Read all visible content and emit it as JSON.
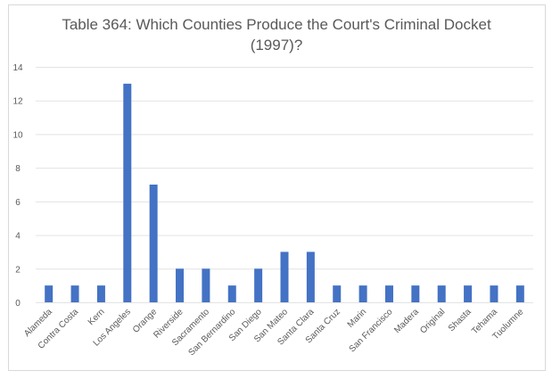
{
  "chart_data": {
    "type": "bar",
    "title": "Table 364: Which Counties Produce the Court's Criminal Docket (1997)?",
    "title_lines": [
      "Table 364: Which Counties Produce the Court's Criminal Docket",
      "(1997)?"
    ],
    "xlabel": "",
    "ylabel": "",
    "ylim": [
      0,
      14
    ],
    "yticks": [
      0,
      2,
      4,
      6,
      8,
      10,
      12,
      14
    ],
    "grid": true,
    "legend": "none",
    "bar_color": "#4472c4",
    "categories": [
      "Alameda",
      "Contra Costa",
      "Kern",
      "Los Angeles",
      "Orange",
      "Riverside",
      "Sacramento",
      "San Bernardino",
      "San Diego",
      "San Mateo",
      "Santa Clara",
      "Santa Cruz",
      "Marin",
      "San Francisco",
      "Madera",
      "Original",
      "Shasta",
      "Tehama",
      "Tuolumne"
    ],
    "values": [
      1,
      1,
      1,
      13,
      7,
      2,
      2,
      1,
      2,
      3,
      3,
      1,
      1,
      1,
      1,
      1,
      1,
      1,
      1
    ]
  }
}
